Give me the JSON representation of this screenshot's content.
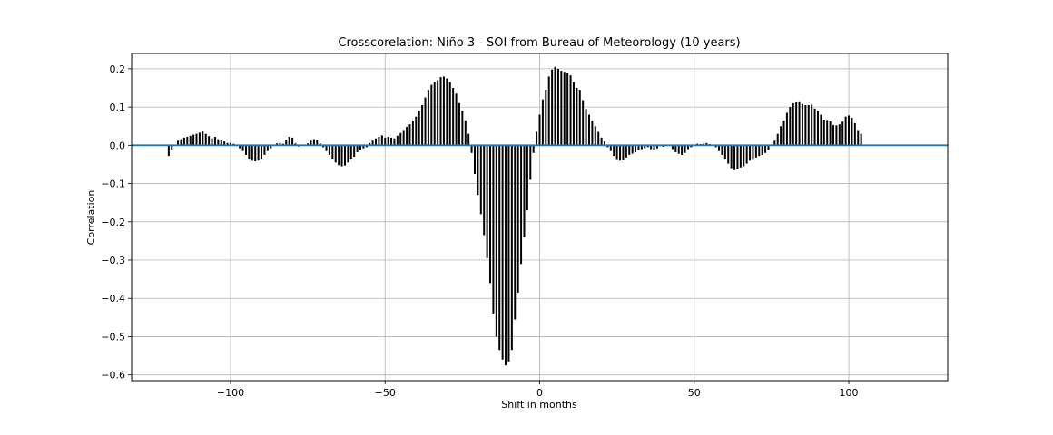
{
  "chart_data": {
    "type": "bar",
    "title": "Crosscorelation: Niño 3 - SOI from Bureau of Meteorology (10 years)",
    "xlabel": "Shift in months",
    "ylabel": "Correlation",
    "xlim": [
      -132,
      132
    ],
    "ylim": [
      -0.615,
      0.24
    ],
    "xticks": [
      -100,
      -50,
      0,
      50,
      100
    ],
    "xtick_labels": [
      "−100",
      "−50",
      "0",
      "50",
      "100"
    ],
    "yticks": [
      0.2,
      0.1,
      0.0,
      -0.1,
      -0.2,
      -0.3,
      -0.4,
      -0.5,
      -0.6
    ],
    "ytick_labels": [
      "0.2",
      "0.1",
      "0.0",
      "−0.1",
      "−0.2",
      "−0.3",
      "−0.4",
      "−0.5",
      "−0.6"
    ],
    "grid": true,
    "baseline": 0,
    "colors": {
      "bars": "#000000",
      "baseline": "#1f77b4",
      "grid": "#b0b0b0"
    },
    "x_start": -120,
    "x_step": 1,
    "values": [
      -0.028,
      -0.012,
      0.0,
      0.012,
      0.016,
      0.02,
      0.022,
      0.025,
      0.028,
      0.03,
      0.033,
      0.036,
      0.03,
      0.024,
      0.018,
      0.022,
      0.016,
      0.014,
      0.01,
      0.006,
      0.006,
      0.004,
      -0.002,
      -0.008,
      -0.015,
      -0.025,
      -0.035,
      -0.04,
      -0.042,
      -0.04,
      -0.035,
      -0.025,
      -0.015,
      -0.008,
      0.0,
      0.005,
      0.006,
      0.004,
      0.015,
      0.022,
      0.02,
      0.005,
      -0.003,
      0.0,
      0.002,
      0.005,
      0.012,
      0.016,
      0.014,
      0.005,
      -0.005,
      -0.015,
      -0.025,
      -0.035,
      -0.045,
      -0.052,
      -0.055,
      -0.053,
      -0.045,
      -0.035,
      -0.03,
      -0.018,
      -0.012,
      -0.008,
      -0.005,
      0.006,
      0.012,
      0.018,
      0.022,
      0.026,
      0.02,
      0.022,
      0.02,
      0.018,
      0.025,
      0.032,
      0.04,
      0.048,
      0.055,
      0.065,
      0.075,
      0.09,
      0.105,
      0.125,
      0.145,
      0.158,
      0.165,
      0.17,
      0.178,
      0.18,
      0.175,
      0.165,
      0.15,
      0.135,
      0.11,
      0.09,
      0.065,
      0.03,
      -0.02,
      -0.075,
      -0.13,
      -0.18,
      -0.235,
      -0.295,
      -0.36,
      -0.44,
      -0.5,
      -0.535,
      -0.56,
      -0.575,
      -0.565,
      -0.535,
      -0.455,
      -0.385,
      -0.31,
      -0.24,
      -0.17,
      -0.09,
      -0.02,
      0.035,
      0.08,
      0.12,
      0.145,
      0.18,
      0.198,
      0.205,
      0.2,
      0.195,
      0.192,
      0.19,
      0.183,
      0.165,
      0.15,
      0.145,
      0.118,
      0.095,
      0.08,
      0.065,
      0.05,
      0.035,
      0.02,
      0.01,
      -0.005,
      -0.015,
      -0.028,
      -0.036,
      -0.04,
      -0.038,
      -0.032,
      -0.025,
      -0.022,
      -0.018,
      -0.013,
      -0.01,
      -0.008,
      -0.005,
      -0.01,
      -0.012,
      -0.008,
      -0.002,
      -0.004,
      -0.002,
      0.0,
      -0.01,
      -0.018,
      -0.022,
      -0.025,
      -0.02,
      -0.01,
      -0.005,
      0.0,
      0.004,
      0.003,
      0.004,
      0.006,
      0.003,
      0.002,
      -0.005,
      -0.015,
      -0.025,
      -0.035,
      -0.048,
      -0.06,
      -0.065,
      -0.062,
      -0.058,
      -0.055,
      -0.048,
      -0.04,
      -0.036,
      -0.032,
      -0.028,
      -0.025,
      -0.02,
      -0.012,
      0.0,
      0.012,
      0.03,
      0.05,
      0.065,
      0.085,
      0.1,
      0.11,
      0.112,
      0.115,
      0.108,
      0.105,
      0.105,
      0.106,
      0.096,
      0.09,
      0.08,
      0.067,
      0.066,
      0.063,
      0.053,
      0.052,
      0.055,
      0.062,
      0.075,
      0.078,
      0.072,
      0.058,
      0.04,
      0.03
    ]
  }
}
